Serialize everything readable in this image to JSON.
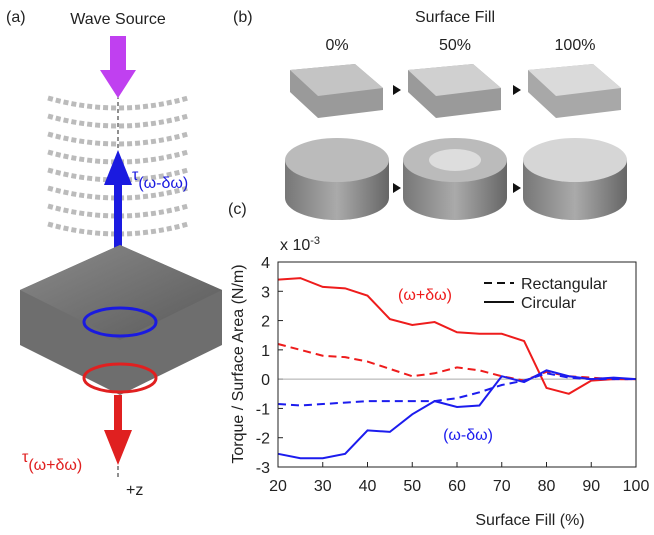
{
  "panels": {
    "a": {
      "label": "(a)",
      "source": "Wave Source",
      "tau_upper": {
        "symbol": "τ",
        "subscript": "(ω-δω)"
      },
      "tau_lower": {
        "symbol": "τ",
        "subscript": "(ω+δω)"
      },
      "axis": "+z"
    },
    "b": {
      "label": "(b)",
      "title": "Surface Fill",
      "fills": [
        "0%",
        "50%",
        "100%"
      ]
    },
    "c": {
      "label": "(c)"
    }
  },
  "chart_data": {
    "type": "line",
    "xlabel": "Surface Fill (%)",
    "ylabel": "Torque / Surface Area (N/m)",
    "y_multiplier": {
      "base": "x 10",
      "exponent": "-3"
    },
    "x": [
      20,
      25,
      30,
      35,
      40,
      45,
      50,
      55,
      60,
      65,
      70,
      75,
      80,
      85,
      90,
      95,
      100
    ],
    "xlim": [
      20,
      100
    ],
    "xticks": [
      20,
      30,
      40,
      50,
      60,
      70,
      80,
      90,
      100
    ],
    "ylim": [
      -3,
      4
    ],
    "yticks": [
      -3,
      -2,
      -1,
      0,
      1,
      2,
      3,
      4
    ],
    "legend": [
      {
        "label": "Rectangular",
        "dashed": true
      },
      {
        "label": "Circular",
        "dashed": false
      }
    ],
    "legend_position": "upper right",
    "series": [
      {
        "color": "#ee1c1c",
        "dashed": false,
        "values": [
          3.4,
          3.45,
          3.15,
          3.1,
          2.85,
          2.05,
          1.85,
          1.95,
          1.6,
          1.55,
          1.55,
          1.3,
          -0.3,
          -0.5,
          -0.05,
          0,
          0
        ]
      },
      {
        "color": "#ee1c1c",
        "dashed": true,
        "values": [
          1.2,
          1.0,
          0.8,
          0.75,
          0.6,
          0.35,
          0.1,
          0.2,
          0.4,
          0.3,
          0.1,
          -0.05,
          0.25,
          0.1,
          0.05,
          0,
          0
        ]
      },
      {
        "color": "#1c1cee",
        "dashed": false,
        "values": [
          -2.55,
          -2.7,
          -2.7,
          -2.55,
          -1.75,
          -1.8,
          -1.2,
          -0.75,
          -0.95,
          -0.9,
          0.1,
          -0.1,
          0.3,
          0.1,
          0,
          0.05,
          0
        ]
      },
      {
        "color": "#1c1cee",
        "dashed": true,
        "values": [
          -0.85,
          -0.9,
          -0.85,
          -0.8,
          -0.75,
          -0.75,
          -0.75,
          -0.75,
          -0.65,
          -0.45,
          -0.2,
          -0.05,
          0.2,
          0.05,
          0,
          0,
          0
        ]
      }
    ],
    "annotations": [
      {
        "text": "(ω+δω)",
        "color": "#ee1c1c"
      },
      {
        "text": "(ω-δω)",
        "color": "#1c1cee"
      }
    ]
  }
}
